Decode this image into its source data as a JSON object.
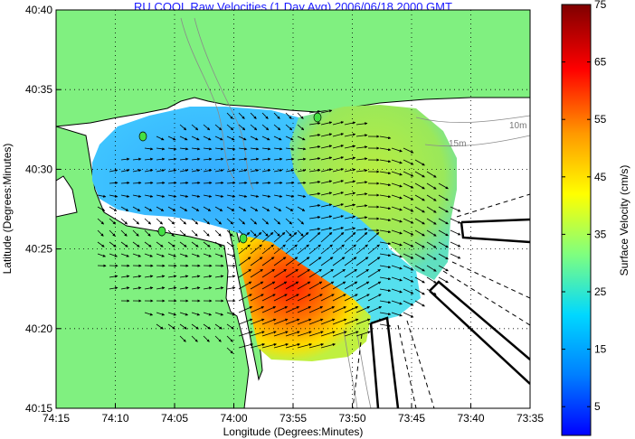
{
  "title": "RU COOL Raw Velocities (1 Day Avg) 2006/06/18 2000 GMT",
  "axes": {
    "xlabel": "Longitude (Degrees:Minutes)",
    "ylabel": "Latitude (Degrees:Minutes)",
    "xticks": [
      "74:15",
      "74:10",
      "74:05",
      "74:00",
      "73:55",
      "73:50",
      "73:45",
      "73:40",
      "73:35"
    ],
    "yticks": [
      "40:40",
      "40:35",
      "40:30",
      "40:25",
      "40:20",
      "40:15"
    ]
  },
  "colorbar": {
    "label": "Surface Velocity (cm/s)",
    "ticks": [
      "75",
      "65",
      "55",
      "45",
      "35",
      "25",
      "15",
      "5"
    ],
    "range": [
      0,
      75
    ],
    "colormap": [
      "#00007f",
      "#0000ff",
      "#007fff",
      "#00ffff",
      "#7fff7f",
      "#ffff00",
      "#ff7f00",
      "#ff0000",
      "#7f0000"
    ]
  },
  "contour_labels": [
    "10m",
    "15m"
  ],
  "colors": {
    "land": "#80f080",
    "water": "#ffffff",
    "title": "#1a1aff"
  }
}
